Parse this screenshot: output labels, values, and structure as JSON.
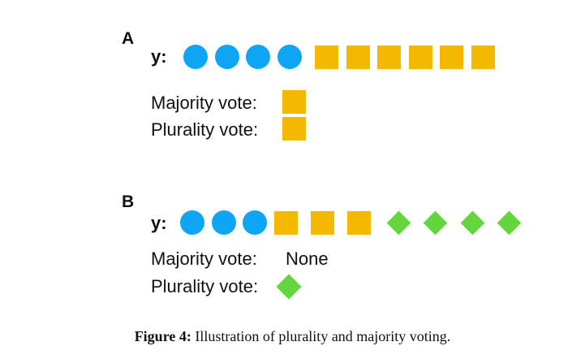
{
  "panels": [
    {
      "label": "A",
      "y_label": "y:",
      "sequence": [
        "circle",
        "circle",
        "circle",
        "circle",
        "square",
        "square",
        "square",
        "square",
        "square",
        "square"
      ],
      "majority_label": "Majority vote:",
      "majority_result": "square",
      "plurality_label": "Plurality vote:",
      "plurality_result": "square"
    },
    {
      "label": "B",
      "y_label": "y:",
      "sequence": [
        "circle",
        "circle",
        "circle",
        "square",
        "square",
        "square",
        "diamond",
        "diamond",
        "diamond",
        "diamond"
      ],
      "majority_label": "Majority vote:",
      "majority_result_text": "None",
      "plurality_label": "Plurality vote:",
      "plurality_result": "diamond"
    }
  ],
  "shape_colors": {
    "circle": "#0ea5f5",
    "square": "#f5b800",
    "diamond": "#62d63c"
  },
  "caption": {
    "prefix": "Figure 4:",
    "text": " Illustration of plurality and majority voting."
  }
}
